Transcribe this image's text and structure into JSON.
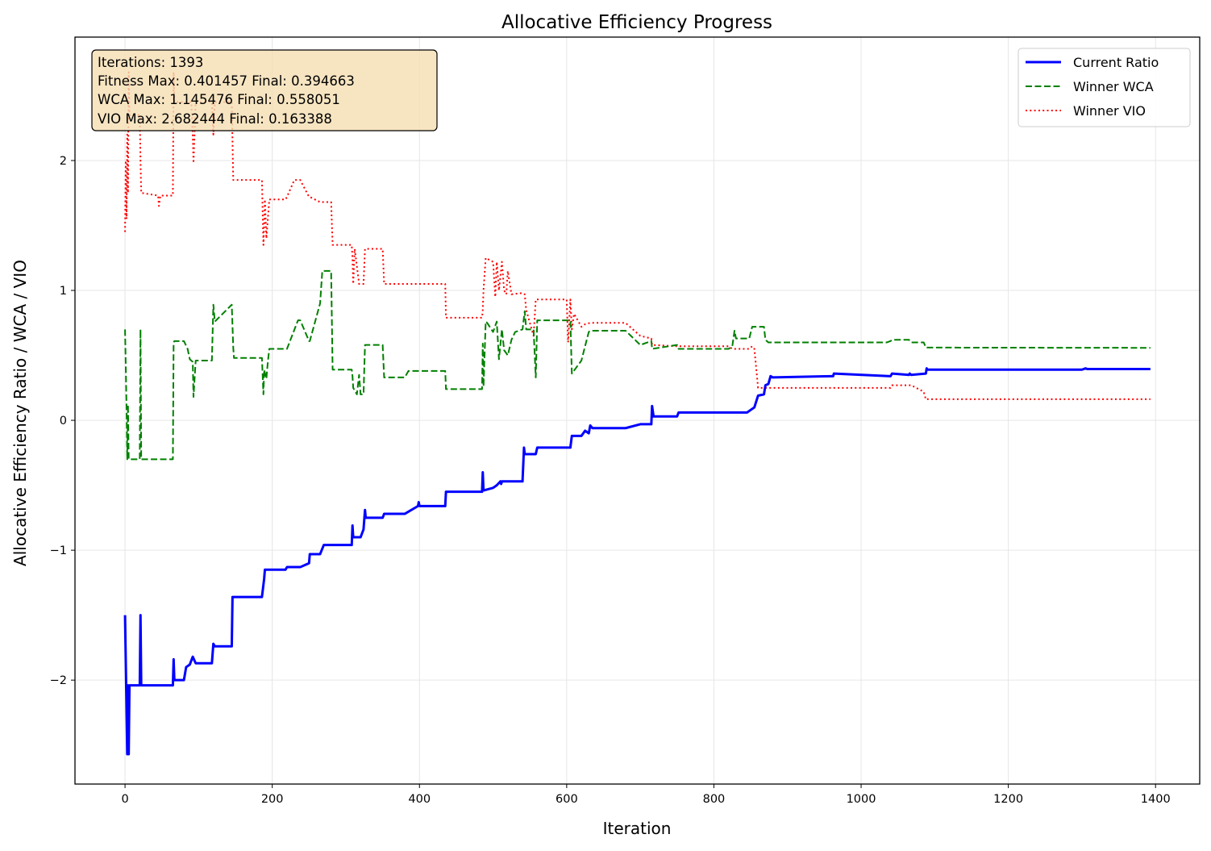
{
  "chart_data": {
    "type": "line",
    "title": "Allocative Efficiency Progress",
    "xlabel": "Iteration",
    "ylabel": "Allocative Efficiency Ratio / WCA / VIO",
    "xlim": [
      -68,
      1460
    ],
    "ylim": [
      -2.8,
      2.95
    ],
    "xticks": [
      0,
      200,
      400,
      600,
      800,
      1000,
      1200,
      1400
    ],
    "yticks": [
      -2,
      -1,
      0,
      1,
      2
    ],
    "ytick_labels": [
      "−2",
      "−1",
      "0",
      "1",
      "2"
    ],
    "grid": true,
    "legend_position": "upper right",
    "annotation": {
      "lines": [
        "Iterations: 1393",
        "Fitness  Max: 0.401457  Final: 0.394663",
        "WCA  Max: 1.145476  Final: 0.558051",
        "VIO  Max: 2.682444  Final: 0.163388"
      ]
    },
    "series": [
      {
        "name": "Current Ratio",
        "color": "#0000ff",
        "style": "solid",
        "x": [
          0,
          3,
          4,
          5,
          6,
          20,
          21,
          22,
          23,
          65,
          66,
          67,
          80,
          83,
          88,
          92,
          96,
          118,
          120,
          122,
          145,
          146,
          147,
          186,
          189,
          190,
          218,
          220,
          238,
          250,
          251,
          265,
          270,
          308,
          309,
          310,
          320,
          324,
          326,
          327,
          350,
          352,
          380,
          398,
          399,
          400,
          435,
          436,
          485,
          486,
          487,
          500,
          505,
          510,
          511,
          512,
          515,
          540,
          542,
          543,
          558,
          560,
          605,
          607,
          620,
          625,
          630,
          632,
          635,
          680,
          700,
          715,
          716,
          718,
          750,
          752,
          820,
          845,
          850,
          855,
          860,
          868,
          870,
          874,
          877,
          880,
          960,
          962,
          963,
          1040,
          1041,
          1042,
          1065,
          1066,
          1068,
          1088,
          1089,
          1090,
          1300,
          1305,
          1307,
          1393
        ],
        "y": [
          -1.5,
          -2.57,
          -2.04,
          -2.57,
          -2.04,
          -2.04,
          -1.5,
          -2.04,
          -2.04,
          -2.04,
          -1.84,
          -2.0,
          -2.0,
          -1.9,
          -1.88,
          -1.82,
          -1.87,
          -1.87,
          -1.72,
          -1.74,
          -1.74,
          -1.36,
          -1.36,
          -1.36,
          -1.22,
          -1.15,
          -1.15,
          -1.13,
          -1.13,
          -1.1,
          -1.03,
          -1.03,
          -0.96,
          -0.96,
          -0.81,
          -0.9,
          -0.9,
          -0.84,
          -0.69,
          -0.75,
          -0.75,
          -0.72,
          -0.72,
          -0.66,
          -0.63,
          -0.66,
          -0.66,
          -0.55,
          -0.55,
          -0.4,
          -0.54,
          -0.52,
          -0.5,
          -0.47,
          -0.49,
          -0.47,
          -0.47,
          -0.47,
          -0.21,
          -0.26,
          -0.26,
          -0.21,
          -0.21,
          -0.12,
          -0.12,
          -0.08,
          -0.1,
          -0.04,
          -0.06,
          -0.06,
          -0.03,
          -0.03,
          0.11,
          0.03,
          0.03,
          0.06,
          0.06,
          0.06,
          0.08,
          0.1,
          0.19,
          0.2,
          0.27,
          0.28,
          0.34,
          0.33,
          0.34,
          0.34,
          0.36,
          0.34,
          0.35,
          0.36,
          0.35,
          0.36,
          0.35,
          0.36,
          0.4,
          0.39,
          0.39,
          0.4,
          0.395,
          0.395
        ]
      },
      {
        "name": "Winner WCA",
        "color": "#008000",
        "style": "dashed",
        "x": [
          0,
          2,
          3,
          4,
          5,
          6,
          20,
          21,
          22,
          23,
          48,
          50,
          65,
          66,
          67,
          80,
          85,
          88,
          92,
          93,
          96,
          118,
          120,
          122,
          145,
          147,
          148,
          186,
          188,
          189,
          192,
          194,
          196,
          218,
          220,
          235,
          238,
          250,
          251,
          265,
          268,
          280,
          282,
          305,
          308,
          309,
          310,
          315,
          318,
          320,
          324,
          326,
          350,
          352,
          380,
          385,
          398,
          400,
          435,
          436,
          485,
          486,
          487,
          490,
          492,
          500,
          505,
          508,
          512,
          515,
          520,
          525,
          530,
          540,
          543,
          545,
          555,
          558,
          560,
          562,
          600,
          602,
          605,
          607,
          620,
          630,
          632,
          680,
          700,
          715,
          716,
          750,
          752,
          820,
          825,
          828,
          830,
          840,
          848,
          852,
          855,
          860,
          868,
          870,
          874,
          877,
          880,
          1035,
          1040,
          1042,
          1065,
          1068,
          1085,
          1088,
          1090,
          1393
        ],
        "y": [
          0.7,
          0.12,
          -0.3,
          0.12,
          -0.3,
          -0.3,
          -0.3,
          0.7,
          -0.3,
          -0.3,
          -0.3,
          -0.3,
          -0.3,
          0.6,
          0.61,
          0.61,
          0.55,
          0.47,
          0.45,
          0.18,
          0.46,
          0.46,
          0.89,
          0.76,
          0.89,
          0.56,
          0.48,
          0.48,
          0.2,
          0.39,
          0.32,
          0.45,
          0.55,
          0.55,
          0.55,
          0.77,
          0.77,
          0.61,
          0.61,
          0.9,
          1.15,
          1.15,
          0.39,
          0.39,
          0.39,
          0.34,
          0.25,
          0.2,
          0.35,
          0.2,
          0.2,
          0.58,
          0.58,
          0.33,
          0.33,
          0.38,
          0.38,
          0.38,
          0.38,
          0.24,
          0.24,
          0.59,
          0.26,
          0.76,
          0.75,
          0.68,
          0.76,
          0.47,
          0.7,
          0.54,
          0.5,
          0.62,
          0.68,
          0.7,
          0.84,
          0.7,
          0.7,
          0.33,
          0.77,
          0.77,
          0.77,
          0.77,
          0.77,
          0.36,
          0.46,
          0.68,
          0.69,
          0.69,
          0.58,
          0.61,
          0.55,
          0.58,
          0.55,
          0.55,
          0.57,
          0.69,
          0.63,
          0.63,
          0.63,
          0.72,
          0.72,
          0.72,
          0.72,
          0.62,
          0.6,
          0.6,
          0.6,
          0.6,
          0.61,
          0.62,
          0.62,
          0.6,
          0.6,
          0.56,
          0.56,
          0.558
        ]
      },
      {
        "name": "Winner VIO",
        "color": "#ff0000",
        "style": "dotted",
        "x": [
          0,
          1,
          2,
          3,
          4,
          5,
          6,
          20,
          21,
          22,
          23,
          45,
          46,
          48,
          65,
          66,
          67,
          90,
          92,
          93,
          96,
          118,
          120,
          122,
          145,
          147,
          148,
          186,
          188,
          189,
          190,
          192,
          196,
          218,
          220,
          230,
          238,
          250,
          251,
          265,
          280,
          282,
          305,
          308,
          309,
          310,
          312,
          318,
          320,
          324,
          326,
          350,
          352,
          398,
          400,
          435,
          436,
          480,
          485,
          486,
          487,
          490,
          500,
          503,
          505,
          508,
          512,
          515,
          518,
          520,
          525,
          540,
          543,
          545,
          555,
          558,
          560,
          562,
          598,
          600,
          602,
          605,
          607,
          610,
          620,
          625,
          632,
          680,
          700,
          715,
          716,
          718,
          750,
          752,
          820,
          825,
          830,
          840,
          848,
          852,
          855,
          860,
          870,
          874,
          877,
          880,
          1035,
          1040,
          1042,
          1065,
          1068,
          1085,
          1088,
          1090,
          1393
        ],
        "y": [
          1.45,
          2.0,
          1.55,
          2.2,
          1.75,
          2.68,
          2.35,
          2.35,
          2.0,
          1.75,
          1.75,
          1.73,
          1.65,
          1.73,
          1.73,
          2.68,
          2.45,
          2.45,
          2.2,
          1.98,
          2.45,
          2.45,
          2.2,
          2.45,
          2.45,
          1.85,
          1.85,
          1.85,
          1.35,
          1.5,
          1.7,
          1.4,
          1.7,
          1.7,
          1.72,
          1.85,
          1.85,
          1.72,
          1.72,
          1.68,
          1.68,
          1.35,
          1.35,
          1.35,
          1.25,
          1.05,
          1.32,
          1.05,
          1.05,
          1.05,
          1.32,
          1.32,
          1.05,
          1.05,
          1.05,
          1.05,
          0.79,
          0.79,
          0.79,
          0.85,
          1.0,
          1.25,
          1.22,
          0.95,
          1.22,
          1.0,
          1.22,
          1.0,
          0.97,
          1.15,
          0.97,
          0.98,
          0.97,
          0.85,
          0.65,
          0.93,
          0.93,
          0.93,
          0.93,
          0.93,
          0.6,
          0.93,
          0.7,
          0.82,
          0.72,
          0.74,
          0.75,
          0.75,
          0.65,
          0.63,
          0.58,
          0.58,
          0.57,
          0.57,
          0.57,
          0.55,
          0.55,
          0.55,
          0.55,
          0.57,
          0.55,
          0.25,
          0.25,
          0.25,
          0.25,
          0.25,
          0.25,
          0.25,
          0.27,
          0.27,
          0.27,
          0.22,
          0.16,
          0.163,
          0.163
        ]
      }
    ]
  }
}
